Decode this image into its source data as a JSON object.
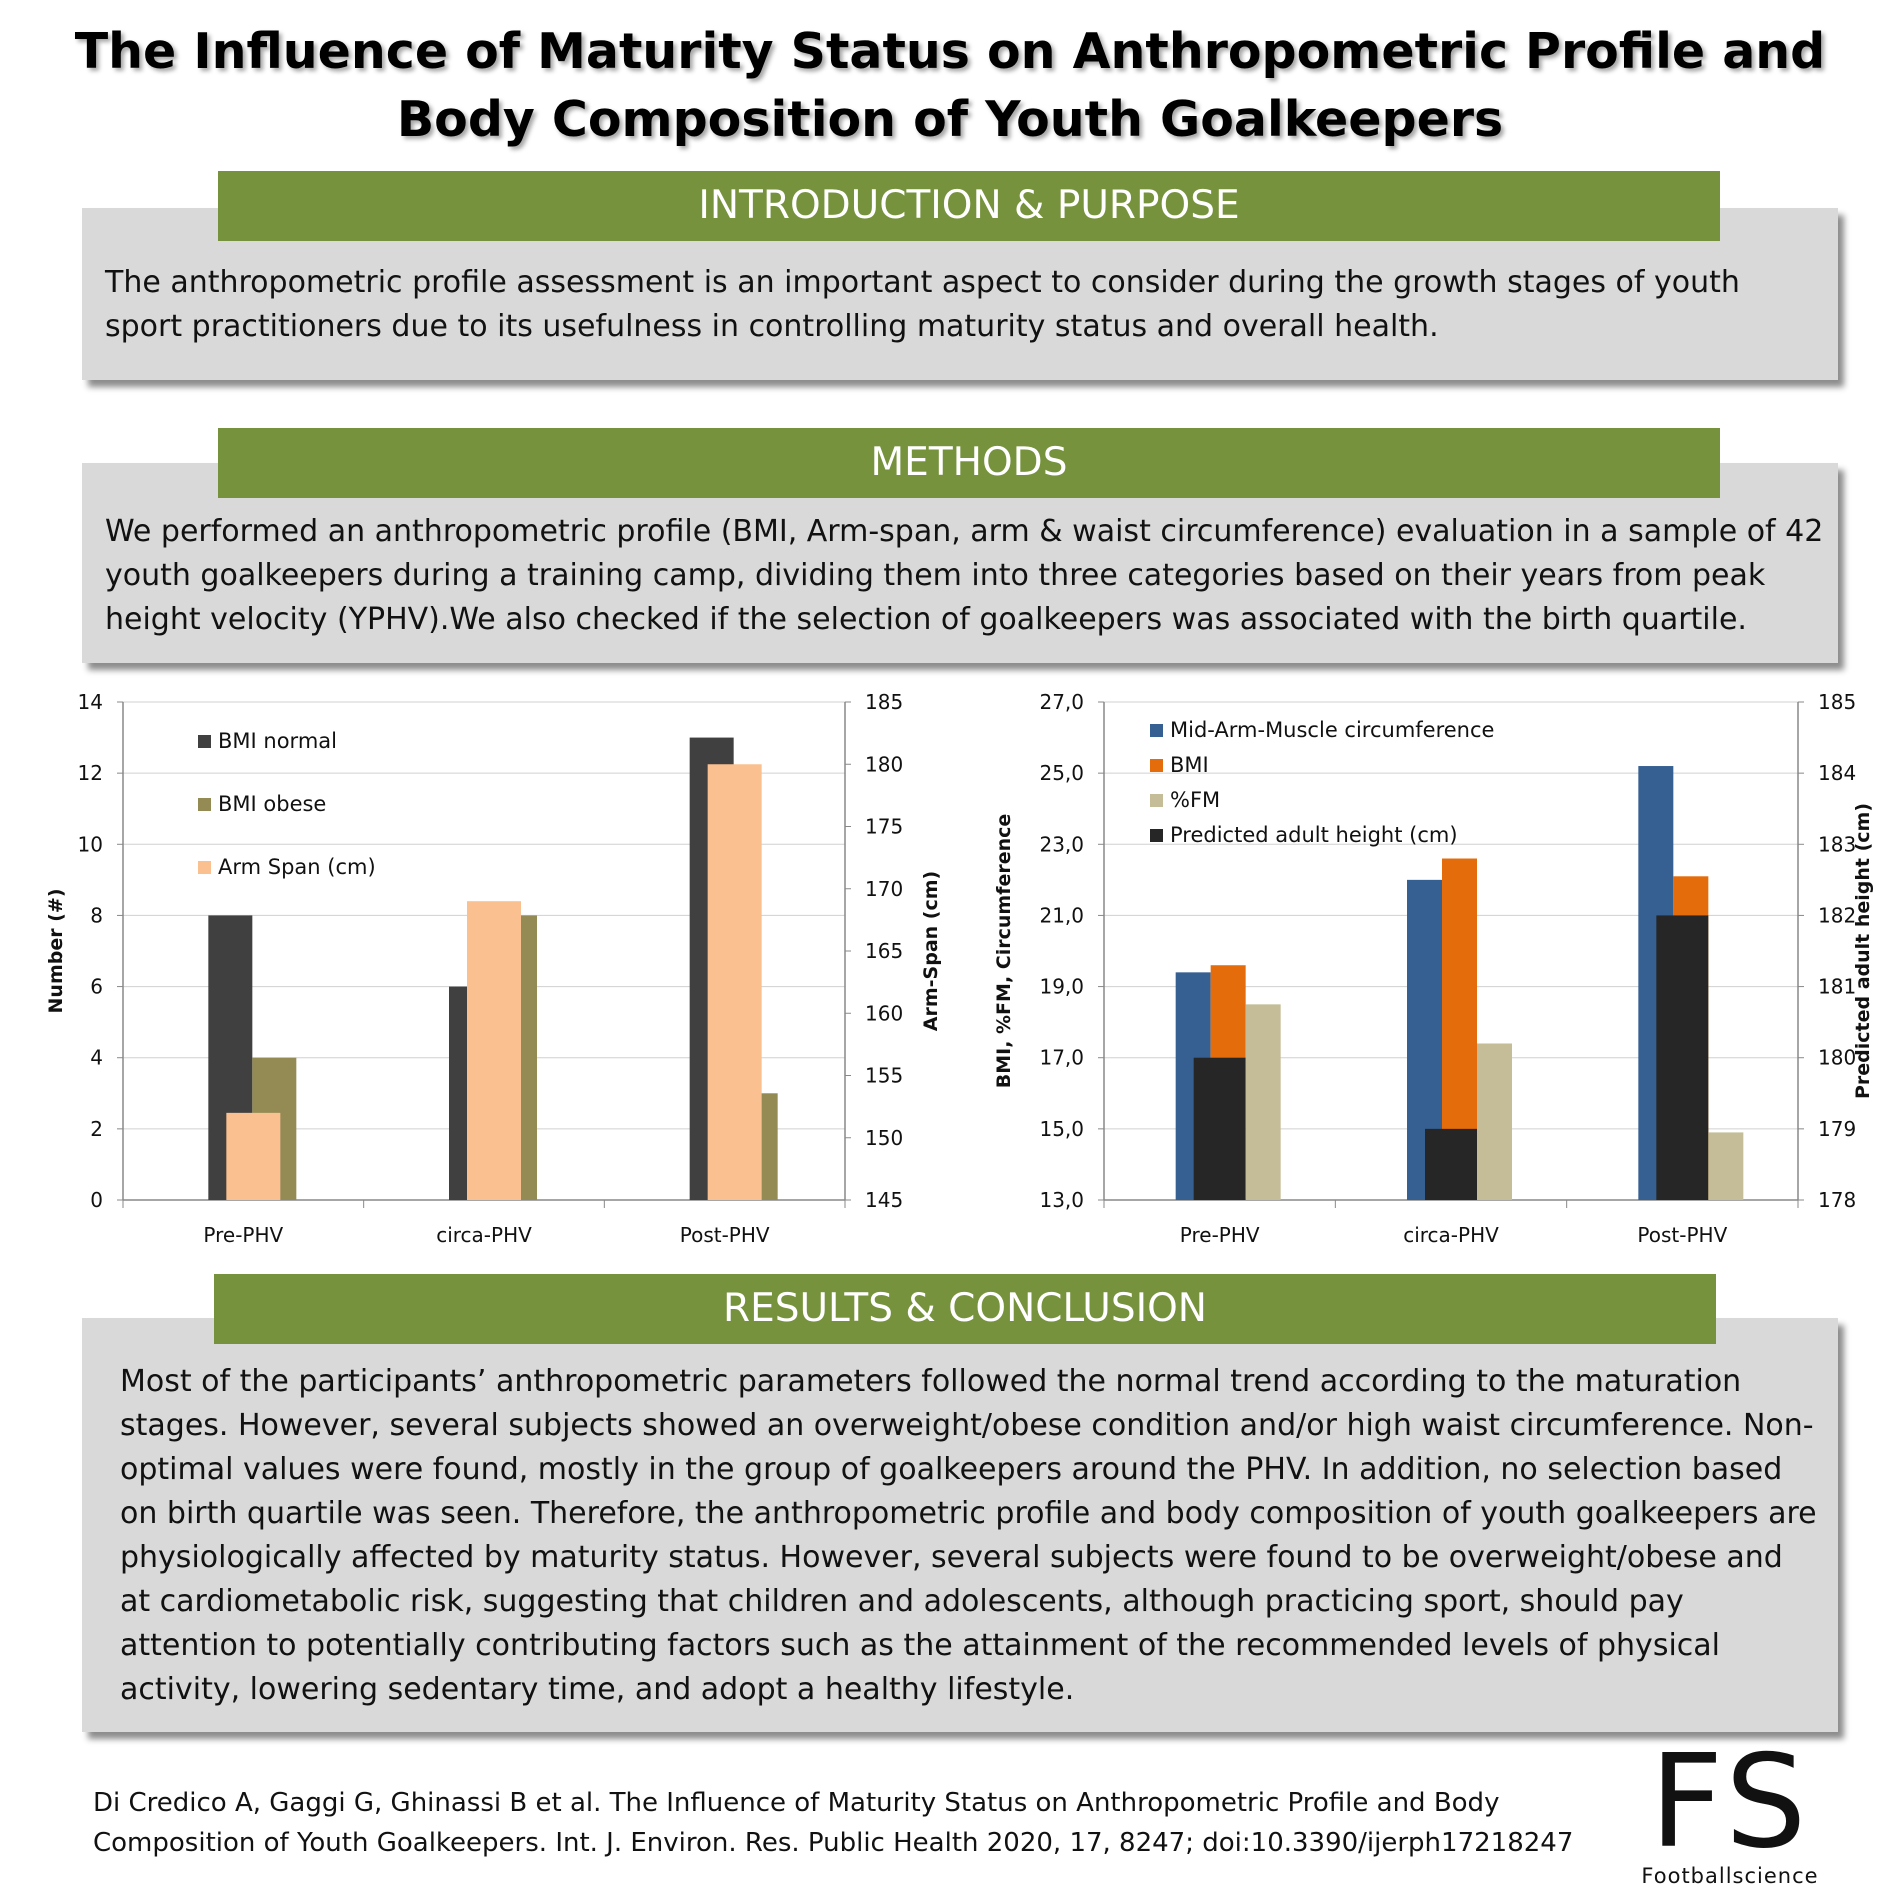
{
  "title": "The Influence of Maturity Status on Anthropometric Profile and Body Composition of Youth Goalkeepers",
  "intro": {
    "heading": "INTRODUCTION & PURPOSE",
    "text": "The anthropometric profile assessment is an important aspect to consider during the growth stages of youth sport practitioners due to its usefulness in controlling maturity status and overall health."
  },
  "methods": {
    "heading": "METHODS",
    "text": "We performed an anthropometric profile (BMI, Arm-span, arm & waist circumference) evaluation in a sample of 42 youth goalkeepers during a training camp, dividing them into three categories based on their years from peak height velocity (YPHV).We also checked if the selection of goalkeepers was associated with the birth quartile."
  },
  "results": {
    "heading": "RESULTS & CONCLUSION",
    "text": "Most of the participants’ anthropometric parameters followed the normal trend according to the maturation stages. However, several subjects showed an overweight/obese condition and/or high waist circumference. Non-optimal values were found, mostly in the group of goalkeepers around the PHV. In addition, no selection based on birth quartile was seen. Therefore, the anthropometric profile and body composition of youth goalkeepers are physiologically affected by maturity status. However, several subjects were found to be overweight/obese and at cardiometabolic risk, suggesting that children and adolescents, although practicing sport, should pay attention to potentially contributing factors such as the attainment of the recommended levels of physical activity, lowering sedentary time, and adopt a healthy lifestyle."
  },
  "citation": "Di Credico A, Gaggi G, Ghinassi B et al. The Influence of Maturity Status on Anthropometric Profile and Body Composition of Youth Goalkeepers. Int. J. Environ. Res. Public Health 2020, 17, 8247; doi:10.3390/ijerph17218247",
  "logo": {
    "mark": "FS",
    "name": "Footballscience"
  },
  "chart_data": [
    {
      "type": "bar",
      "categories": [
        "Pre-PHV",
        "circa-PHV",
        "Post-PHV"
      ],
      "ylabel": "Number (#)",
      "y2label": "Arm-Span (cm)",
      "ylim": [
        0,
        14
      ],
      "y2lim": [
        145,
        185
      ],
      "yticks": [
        "0",
        "2",
        "4",
        "6",
        "8",
        "10",
        "12",
        "14"
      ],
      "y2ticks": [
        "145",
        "150",
        "155",
        "160",
        "165",
        "170",
        "175",
        "180",
        "185"
      ],
      "legend_position": "top-left",
      "series": [
        {
          "name": "BMI normal",
          "axis": "left",
          "color": "#404040",
          "values": [
            8,
            6,
            13
          ]
        },
        {
          "name": "BMI obese",
          "axis": "left",
          "color": "#948a54",
          "values": [
            4,
            8,
            3
          ]
        },
        {
          "name": "Arm Span (cm)",
          "axis": "right",
          "color": "#fac090",
          "values": [
            152,
            169,
            180
          ]
        }
      ]
    },
    {
      "type": "bar",
      "categories": [
        "Pre-PHV",
        "circa-PHV",
        "Post-PHV"
      ],
      "ylabel": "BMI, %FM, Circumference",
      "y2label": "Predicted adult height (cm)",
      "ylim": [
        13,
        27
      ],
      "y2lim": [
        178,
        185
      ],
      "yticks": [
        "13,0",
        "15,0",
        "17,0",
        "19,0",
        "21,0",
        "23,0",
        "25,0",
        "27,0"
      ],
      "y2ticks": [
        "178",
        "179",
        "180",
        "181",
        "182",
        "183",
        "184",
        "185"
      ],
      "legend_position": "top-left",
      "series": [
        {
          "name": "Mid-Arm-Muscle circumference",
          "axis": "left",
          "color": "#376092",
          "values": [
            19.4,
            22.0,
            25.2
          ]
        },
        {
          "name": "BMI",
          "axis": "left",
          "color": "#e46c0a",
          "values": [
            19.6,
            22.6,
            22.1
          ]
        },
        {
          "name": "%FM",
          "axis": "left",
          "color": "#c4bd97",
          "values": [
            18.5,
            17.4,
            14.9
          ]
        },
        {
          "name": "Predicted adult height (cm)",
          "axis": "right",
          "color": "#262626",
          "values": [
            180,
            179,
            182
          ]
        }
      ]
    }
  ]
}
